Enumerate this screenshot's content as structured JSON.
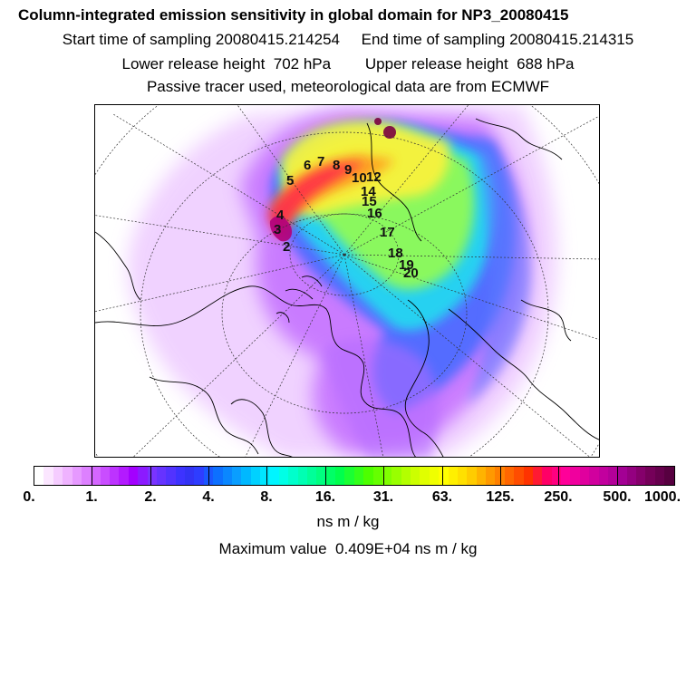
{
  "header": {
    "title": "Column-integrated emission sensitivity in global domain for NP3_20080415",
    "start_label": "Start time of sampling 20080415.214254",
    "end_label": "End time of sampling 20080415.214315",
    "lower_label": "Lower release height  702 hPa",
    "upper_label": "Upper release height  688 hPa",
    "tracer_line": "Passive tracer used, meteorological data are from ECMWF"
  },
  "map": {
    "projection": "north-polar-stereographic",
    "trajectory_labels": [
      "2",
      "3",
      "4",
      "5",
      "6",
      "7",
      "8",
      "9",
      "10",
      "12",
      "14",
      "15",
      "16",
      "17",
      "18",
      "19",
      "20"
    ]
  },
  "colorbar": {
    "tick_labels": [
      "0.",
      "1.",
      "2.",
      "4.",
      "8.",
      "16.",
      "31.",
      "63.",
      "125.",
      "250.",
      "500.",
      "1000."
    ],
    "colors": [
      "#ffffff",
      "#fbe6ff",
      "#f5ccff",
      "#efb3ff",
      "#e699ff",
      "#dd80ff",
      "#d466ff",
      "#c94dff",
      "#bd33ff",
      "#b31aff",
      "#a300ff",
      "#8c1aff",
      "#7a33ff",
      "#6633ff",
      "#5233ff",
      "#3d33ff",
      "#3333f5",
      "#2e3dff",
      "#1a57ff",
      "#0d70ff",
      "#0a87ff",
      "#0a9eff",
      "#00b8ff",
      "#00d1ff",
      "#00e6ff",
      "#00f5ff",
      "#00ffe6",
      "#00ffcc",
      "#00ffb3",
      "#00ff99",
      "#00ff80",
      "#00ff66",
      "#00ff4d",
      "#1aff33",
      "#33ff1a",
      "#4dff00",
      "#66ff00",
      "#80ff00",
      "#99ff00",
      "#b3ff00",
      "#ccff00",
      "#e0ff00",
      "#f0ff00",
      "#ffff00",
      "#fff000",
      "#ffe000",
      "#ffcc00",
      "#ffb300",
      "#ff9900",
      "#ff8000",
      "#ff6600",
      "#ff4d00",
      "#ff3300",
      "#ff1a33",
      "#ff0066",
      "#ff0080",
      "#ff0099",
      "#f0009e",
      "#e0009e",
      "#d1009e",
      "#c2009e",
      "#b30099",
      "#a30094",
      "#940080",
      "#85006b",
      "#750059",
      "#66004d",
      "#570040"
    ],
    "units": "ns m / kg",
    "max_value_line": "Maximum value  0.409E+04 ns m / kg"
  }
}
